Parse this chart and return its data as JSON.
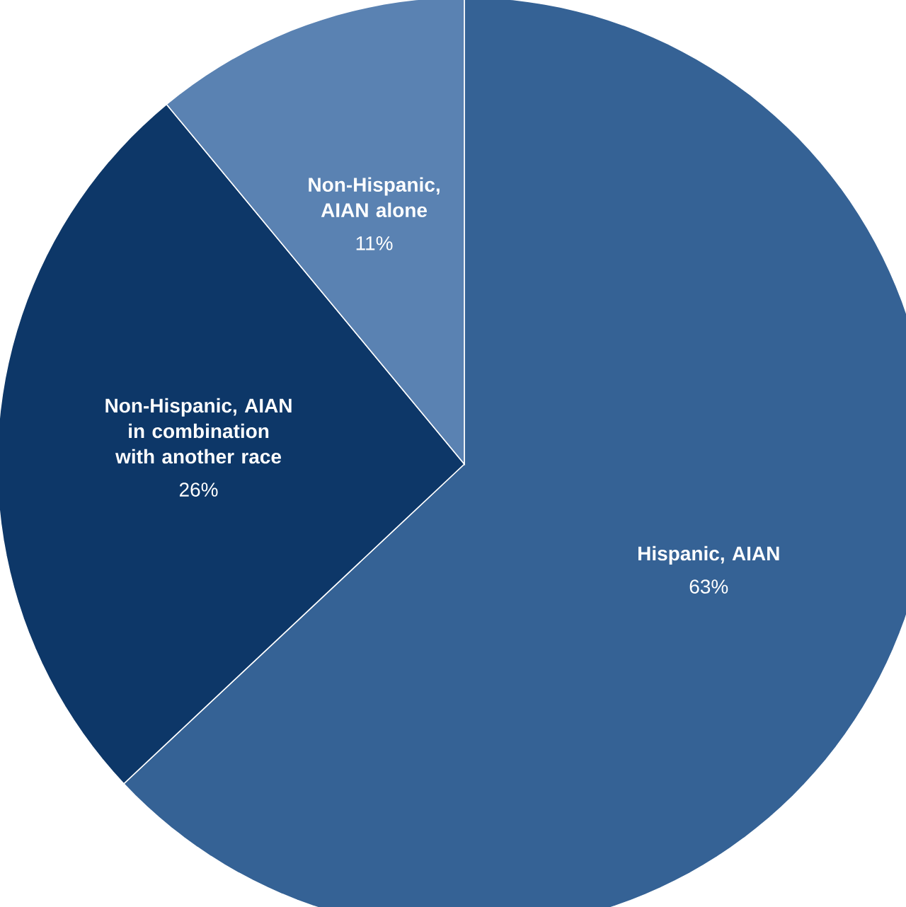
{
  "chart_data": {
    "type": "pie",
    "categories": [
      "Hispanic, AIAN",
      "Non-Hispanic, AIAN in combination with another race",
      "Non-Hispanic, AIAN alone"
    ],
    "values": [
      63,
      26,
      11
    ],
    "value_labels": [
      "63%",
      "26%",
      "11%"
    ],
    "colors": [
      "#356295",
      "#0d3768",
      "#5a82b2"
    ]
  }
}
